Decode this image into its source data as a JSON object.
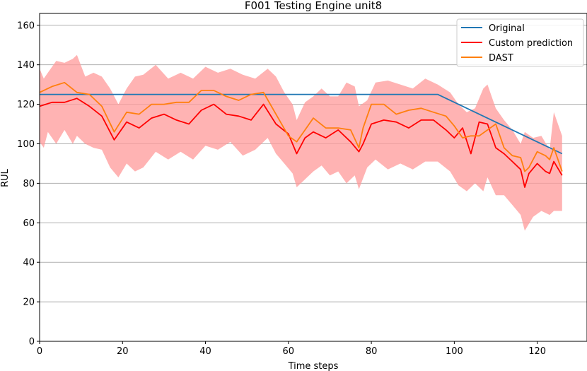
{
  "chart_data": {
    "type": "line",
    "title": "F001 Testing Engine unit8",
    "xlabel": "Time steps",
    "ylabel": "RUL",
    "xlim": [
      0,
      132
    ],
    "ylim": [
      0,
      166
    ],
    "xticks": [
      0,
      20,
      40,
      60,
      80,
      100,
      120
    ],
    "yticks": [
      0,
      20,
      40,
      60,
      80,
      100,
      120,
      140,
      160
    ],
    "grid": "horizontal",
    "legend_position": "top-right",
    "colors": {
      "original": "#1f77b4",
      "custom": "#ff0000",
      "dast": "#ff7f0e",
      "band": "#ff9999"
    },
    "series": [
      {
        "name": "Original",
        "x": [
          0,
          96,
          126
        ],
        "values": [
          125,
          125,
          95
        ]
      },
      {
        "name": "Custom prediction",
        "x": [
          0,
          3,
          6,
          9,
          12,
          15,
          18,
          21,
          24,
          27,
          30,
          33,
          36,
          39,
          42,
          45,
          48,
          51,
          54,
          57,
          60,
          62,
          64,
          66,
          69,
          72,
          75,
          77,
          78,
          80,
          83,
          86,
          89,
          92,
          95,
          98,
          100,
          102,
          104,
          106,
          108,
          110,
          112,
          114,
          116,
          117,
          118,
          120,
          122,
          123,
          124,
          126
        ],
        "values": [
          119,
          121,
          121,
          123,
          119,
          114,
          102,
          111,
          108,
          113,
          115,
          112,
          110,
          117,
          120,
          115,
          114,
          112,
          120,
          110,
          105,
          95,
          103,
          106,
          103,
          107,
          101,
          96,
          100,
          110,
          112,
          111,
          108,
          112,
          112,
          107,
          103,
          108,
          95,
          111,
          110,
          98,
          95,
          91,
          87,
          78,
          85,
          90,
          86,
          85,
          91,
          84
        ]
      },
      {
        "name": "DAST",
        "x": [
          0,
          3,
          6,
          9,
          12,
          15,
          18,
          21,
          24,
          27,
          30,
          33,
          36,
          39,
          42,
          45,
          48,
          51,
          54,
          57,
          60,
          62,
          64,
          66,
          69,
          72,
          75,
          77,
          78,
          80,
          83,
          86,
          89,
          92,
          95,
          98,
          100,
          102,
          104,
          106,
          108,
          110,
          112,
          114,
          116,
          117,
          118,
          120,
          122,
          123,
          124,
          126
        ],
        "values": [
          126,
          129,
          131,
          126,
          125,
          119,
          106,
          116,
          115,
          120,
          120,
          121,
          121,
          127,
          127,
          124,
          122,
          125,
          126,
          115,
          104,
          101,
          107,
          113,
          108,
          108,
          107,
          98,
          108,
          120,
          120,
          115,
          117,
          118,
          116,
          114,
          109,
          103,
          104,
          104,
          107,
          110,
          98,
          94,
          93,
          86,
          88,
          96,
          94,
          92,
          98,
          86
        ]
      }
    ],
    "band": {
      "x": [
        0,
        1,
        2,
        4,
        6,
        8,
        9,
        11,
        13,
        15,
        17,
        19,
        21,
        23,
        25,
        28,
        31,
        34,
        37,
        40,
        43,
        46,
        49,
        52,
        55,
        57,
        59,
        61,
        62,
        64,
        66,
        68,
        70,
        72,
        74,
        76,
        77,
        79,
        81,
        84,
        87,
        90,
        93,
        96,
        99,
        101,
        103,
        105,
        107,
        108,
        110,
        112,
        114,
        116,
        117,
        119,
        121,
        123,
        124,
        126
      ],
      "upper": [
        138,
        133,
        136,
        142,
        141,
        143,
        145,
        134,
        136,
        134,
        128,
        120,
        128,
        134,
        135,
        140,
        133,
        136,
        133,
        139,
        136,
        138,
        135,
        133,
        138,
        134,
        126,
        120,
        112,
        121,
        124,
        128,
        124,
        124,
        131,
        129,
        119,
        122,
        131,
        132,
        130,
        128,
        133,
        130,
        126,
        120,
        116,
        118,
        128,
        130,
        118,
        112,
        107,
        100,
        106,
        103,
        104,
        97,
        116,
        104
      ],
      "lower": [
        101,
        98,
        106,
        100,
        107,
        100,
        104,
        100,
        98,
        97,
        88,
        83,
        90,
        86,
        88,
        96,
        92,
        96,
        92,
        99,
        97,
        101,
        94,
        97,
        103,
        95,
        90,
        85,
        78,
        82,
        86,
        89,
        84,
        86,
        80,
        84,
        77,
        88,
        92,
        87,
        90,
        87,
        91,
        91,
        86,
        79,
        76,
        80,
        76,
        83,
        74,
        74,
        69,
        64,
        56,
        63,
        66,
        64,
        66,
        66
      ]
    }
  }
}
